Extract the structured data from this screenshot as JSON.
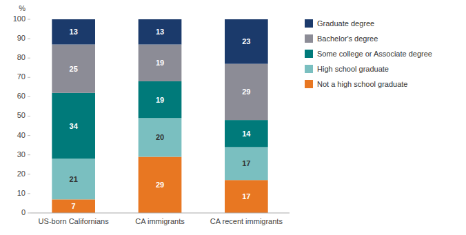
{
  "chart_data": {
    "type": "bar",
    "stacked": true,
    "categories": [
      "US-born Californians",
      "CA immigrants",
      "CA recent immigrants"
    ],
    "series": [
      {
        "name": "Not a high school graduate",
        "color": "#E87722",
        "values": [
          7,
          29,
          17
        ]
      },
      {
        "name": "High school graduate",
        "color": "#7ABFC0",
        "values": [
          21,
          20,
          17
        ]
      },
      {
        "name": "Some college or Associate degree",
        "color": "#007A7A",
        "values": [
          34,
          19,
          14
        ]
      },
      {
        "name": "Bachelor's degree",
        "color": "#8C8C96",
        "values": [
          25,
          19,
          29
        ]
      },
      {
        "name": "Graduate degree",
        "color": "#1B3A6B",
        "values": [
          13,
          13,
          23
        ]
      }
    ],
    "ylabel": "%",
    "ylim": [
      0,
      100
    ],
    "yticks": [
      0,
      10,
      20,
      30,
      40,
      50,
      60,
      70,
      80,
      90,
      100
    ],
    "grid": false,
    "legend": "right",
    "data_labels": true
  }
}
